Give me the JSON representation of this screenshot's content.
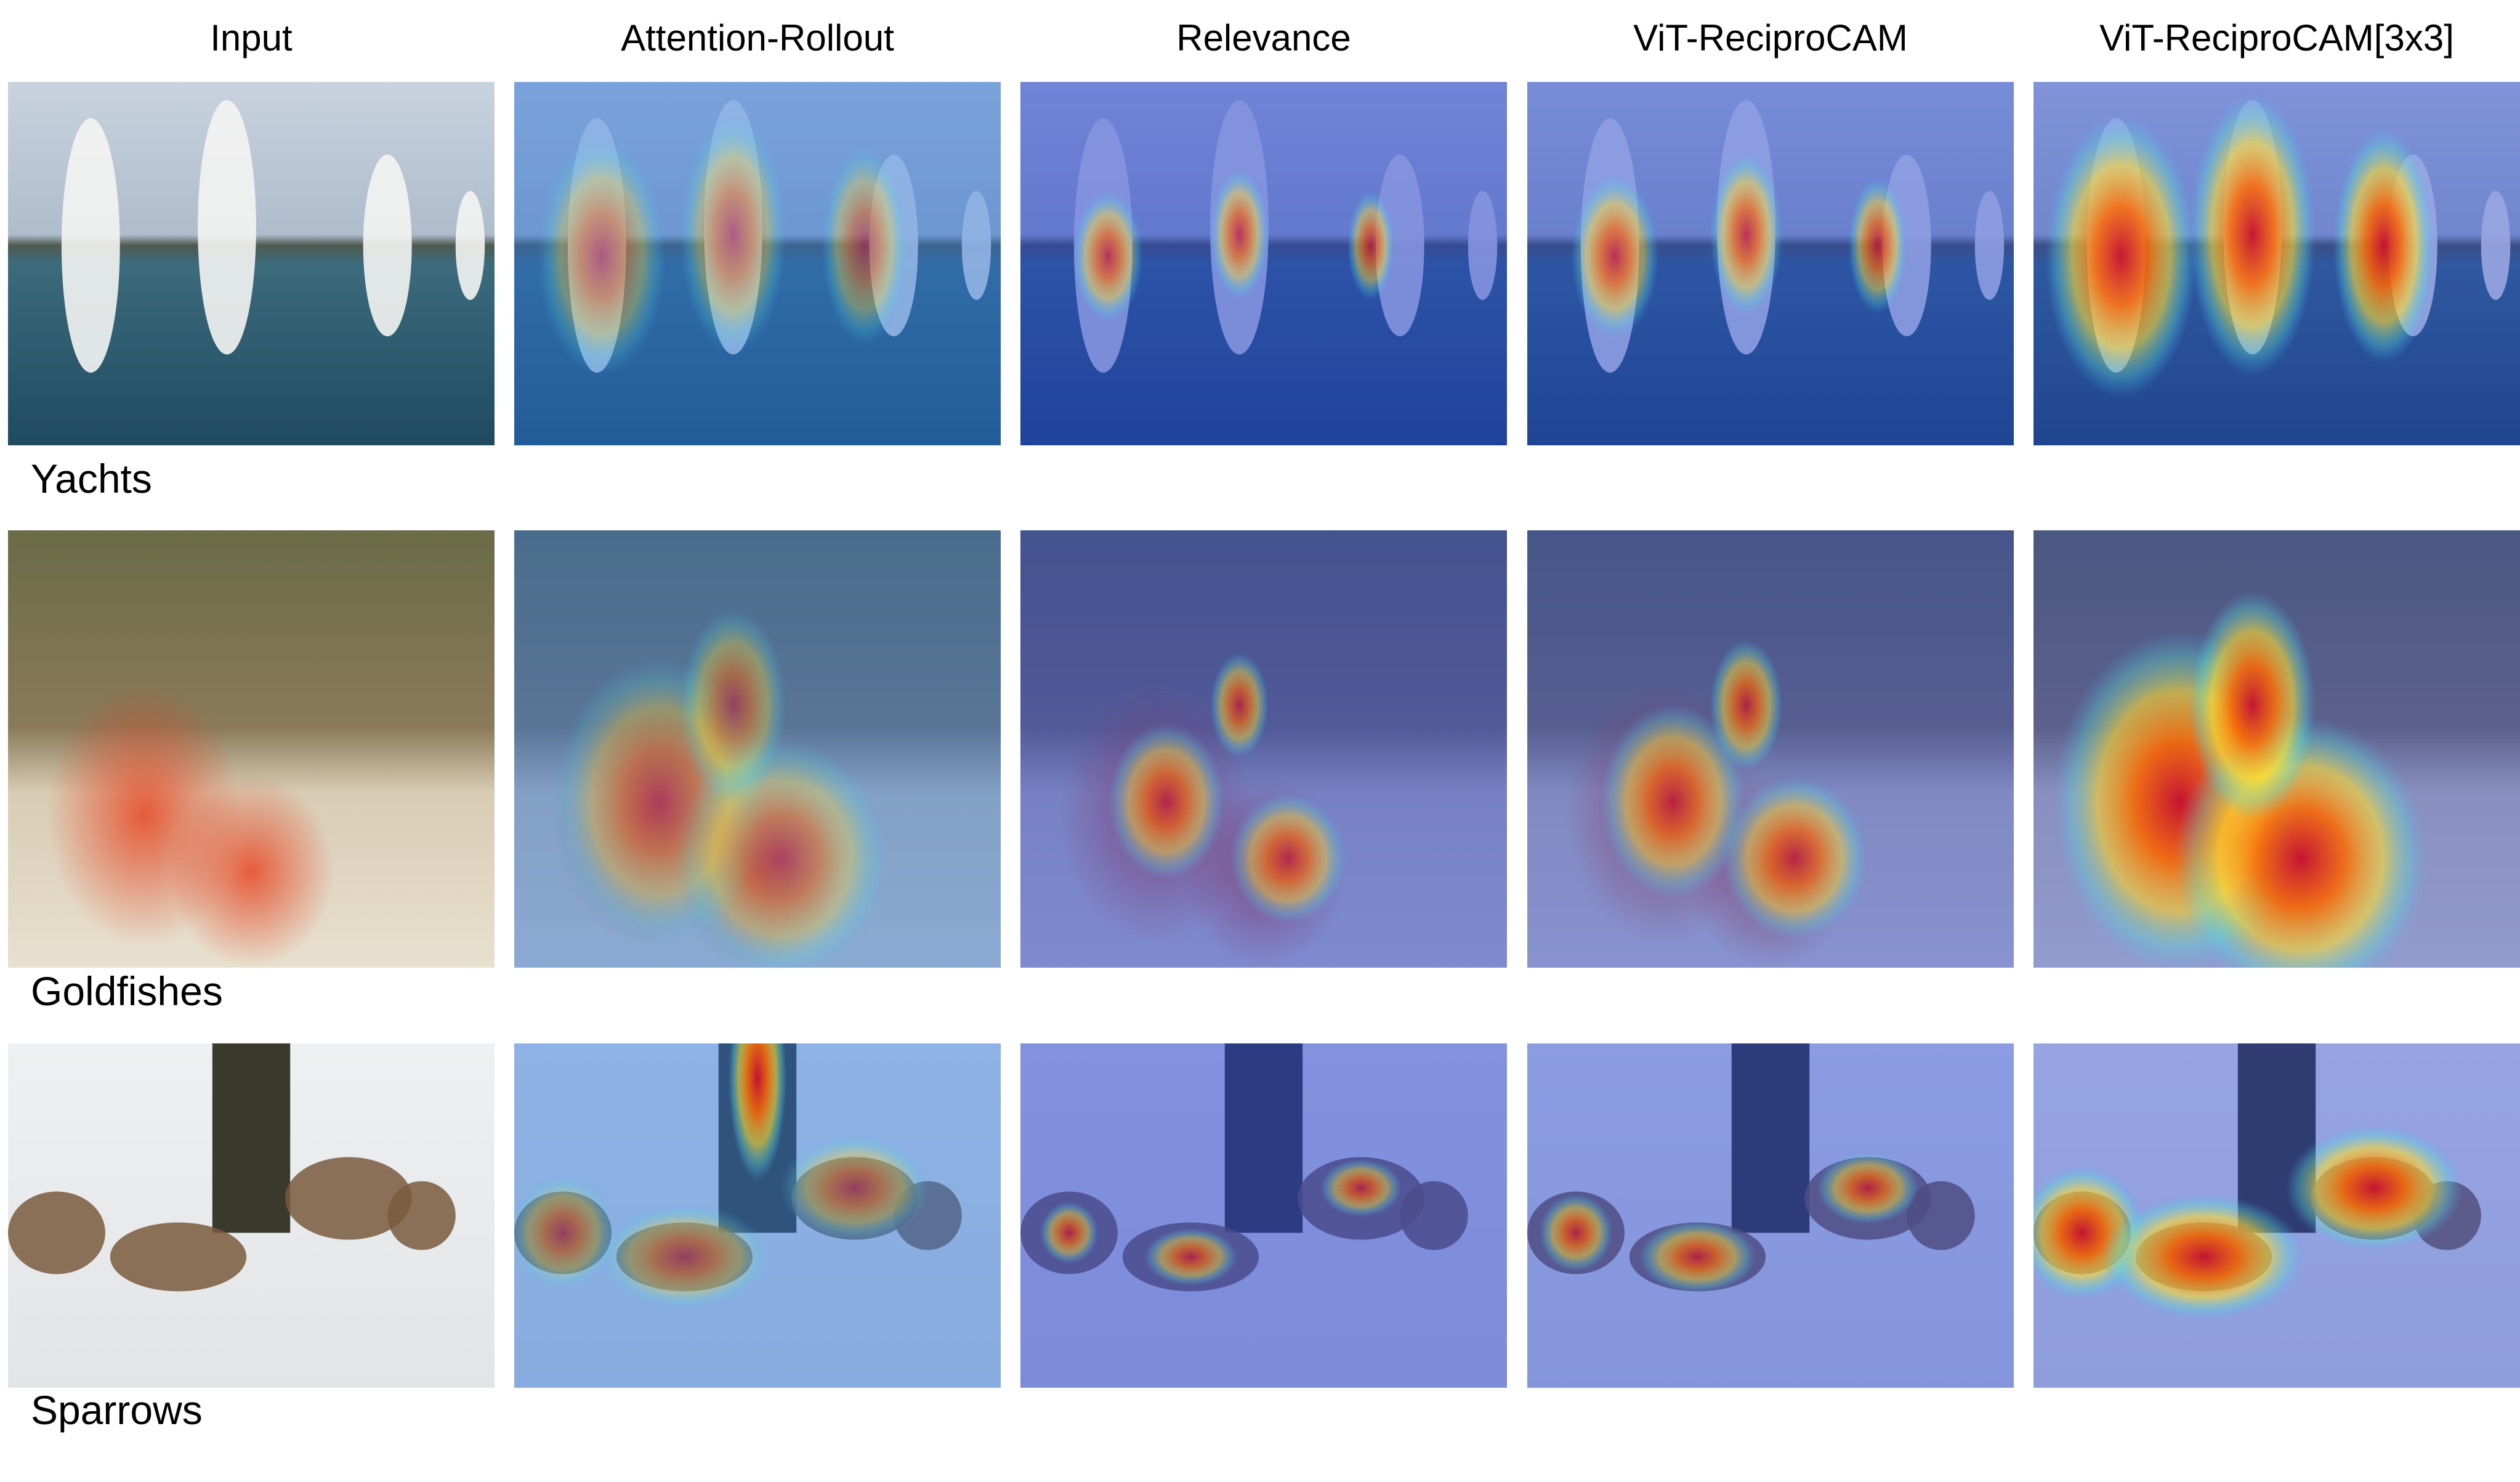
{
  "header": {
    "columns": [
      "Input",
      "Attention-Rollout",
      "Relevance",
      "ViT-ReciproCAM",
      "ViT-ReciproCAM[3x3]"
    ]
  },
  "rows": [
    {
      "label": "Yachts"
    },
    {
      "label": "Goldfishes"
    },
    {
      "label": "Sparrows"
    }
  ]
}
